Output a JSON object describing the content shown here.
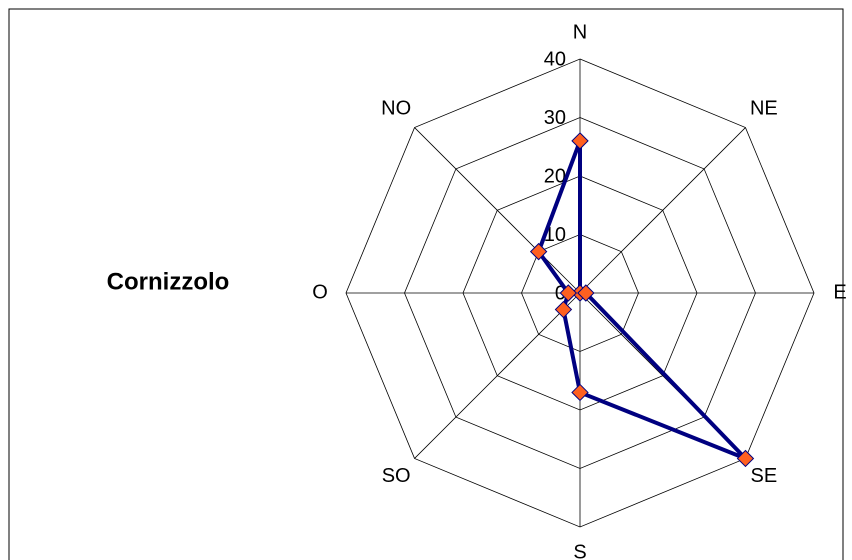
{
  "chart_data": {
    "type": "radar",
    "title": "Cornizzolo",
    "categories": [
      "N",
      "NE",
      "E",
      "SE",
      "S",
      "SO",
      "O",
      "NO"
    ],
    "series": [
      {
        "color": "#000080",
        "marker_color": "#ff6020",
        "values": [
          26,
          0,
          1,
          40,
          17,
          4,
          2,
          10
        ]
      }
    ],
    "rlim": [
      0,
      40
    ],
    "rticks": [
      0,
      10,
      20,
      30,
      40
    ],
    "grid": true
  }
}
